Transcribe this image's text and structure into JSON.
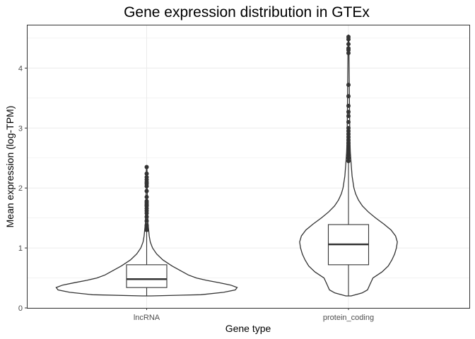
{
  "chart_data": {
    "type": "violin",
    "title": "Gene expression distribution in GTEx",
    "xlabel": "Gene type",
    "ylabel": "Mean expression (log-TPM)",
    "ylim": [
      0,
      4.7
    ],
    "yticks": [
      "0",
      "1",
      "2",
      "3",
      "4"
    ],
    "grid": true,
    "categories": [
      "lncRNA",
      "protein_coding"
    ],
    "series": [
      {
        "name": "lncRNA",
        "box": {
          "q1": 0.34,
          "median": 0.48,
          "q3": 0.72,
          "whisker_low": 0.2,
          "whisker_high": 1.3
        },
        "density": [
          [
            0.2,
            0.05
          ],
          [
            0.22,
            0.6
          ],
          [
            0.26,
            0.85
          ],
          [
            0.3,
            0.98
          ],
          [
            0.34,
            1.0
          ],
          [
            0.38,
            0.93
          ],
          [
            0.42,
            0.8
          ],
          [
            0.46,
            0.66
          ],
          [
            0.5,
            0.55
          ],
          [
            0.55,
            0.46
          ],
          [
            0.6,
            0.4
          ],
          [
            0.65,
            0.34
          ],
          [
            0.7,
            0.28
          ],
          [
            0.8,
            0.18
          ],
          [
            0.9,
            0.11
          ],
          [
            1.0,
            0.065
          ],
          [
            1.1,
            0.04
          ],
          [
            1.2,
            0.028
          ],
          [
            1.3,
            0.022
          ],
          [
            1.4,
            0.015
          ],
          [
            1.6,
            0.012
          ],
          [
            1.8,
            0.008
          ],
          [
            2.0,
            0.006
          ],
          [
            2.2,
            0.005
          ],
          [
            2.35,
            0.003
          ]
        ],
        "outliers": [
          1.3,
          1.33,
          1.36,
          1.38,
          1.45,
          1.52,
          1.58,
          1.62,
          1.66,
          1.7,
          1.72,
          1.75,
          1.78,
          1.85,
          1.95,
          2.03,
          2.07,
          2.1,
          2.14,
          2.18,
          2.24,
          2.35
        ]
      },
      {
        "name": "protein_coding",
        "box": {
          "q1": 0.72,
          "median": 1.06,
          "q3": 1.39,
          "whisker_low": 0.2,
          "whisker_high": 2.42
        },
        "density": [
          [
            0.2,
            0.03
          ],
          [
            0.25,
            0.15
          ],
          [
            0.3,
            0.21
          ],
          [
            0.4,
            0.24
          ],
          [
            0.5,
            0.27
          ],
          [
            0.6,
            0.37
          ],
          [
            0.7,
            0.44
          ],
          [
            0.8,
            0.48
          ],
          [
            0.9,
            0.51
          ],
          [
            1.0,
            0.53
          ],
          [
            1.1,
            0.54
          ],
          [
            1.2,
            0.52
          ],
          [
            1.3,
            0.47
          ],
          [
            1.4,
            0.39
          ],
          [
            1.5,
            0.3
          ],
          [
            1.6,
            0.22
          ],
          [
            1.7,
            0.155
          ],
          [
            1.8,
            0.11
          ],
          [
            1.9,
            0.08
          ],
          [
            2.0,
            0.06
          ],
          [
            2.2,
            0.04
          ],
          [
            2.4,
            0.03
          ],
          [
            2.6,
            0.02
          ],
          [
            2.8,
            0.016
          ],
          [
            3.0,
            0.014
          ],
          [
            3.5,
            0.01
          ],
          [
            4.0,
            0.007
          ],
          [
            4.5,
            0.004
          ],
          [
            4.55,
            0.002
          ]
        ],
        "outliers": [
          2.45,
          2.5,
          2.55,
          2.6,
          2.65,
          2.7,
          2.75,
          2.8,
          2.85,
          2.9,
          2.95,
          3.0,
          3.1,
          3.2,
          3.27,
          3.37,
          3.53,
          3.72,
          4.25,
          4.3,
          4.33,
          4.4,
          4.48,
          4.52
        ]
      }
    ]
  }
}
